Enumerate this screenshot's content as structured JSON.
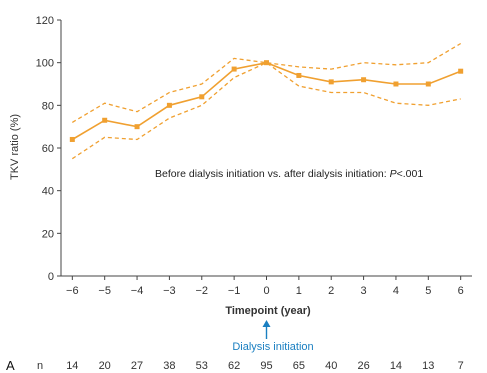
{
  "chart_data": {
    "type": "line",
    "panel_label": "A",
    "xlabel": "Timepoint (year)",
    "ylabel": "TKV ratio (%)",
    "ylim": [
      0,
      120
    ],
    "yticks": [
      0,
      20,
      40,
      60,
      80,
      100,
      120
    ],
    "categories": [
      "−6",
      "−5",
      "−4",
      "−3",
      "−2",
      "−1",
      "0",
      "1",
      "2",
      "3",
      "4",
      "5",
      "6"
    ],
    "x": [
      -6,
      -5,
      -4,
      -3,
      -2,
      -1,
      0,
      1,
      2,
      3,
      4,
      5,
      6
    ],
    "series": [
      {
        "role": "mean",
        "style": "solid",
        "marker": "square",
        "color": "#f0a030",
        "values": [
          64,
          73,
          70,
          80,
          84,
          97,
          100,
          94,
          91,
          92,
          90,
          90,
          96
        ]
      },
      {
        "role": "upper",
        "style": "dashed",
        "color": "#f0a030",
        "values": [
          72,
          81,
          77,
          86,
          90,
          102,
          100,
          98,
          97,
          100,
          99,
          100,
          109
        ]
      },
      {
        "role": "lower",
        "style": "dashed",
        "color": "#f0a030",
        "values": [
          55,
          65,
          64,
          74,
          80,
          93,
          100,
          89,
          86,
          86,
          81,
          80,
          83
        ]
      }
    ],
    "annotation": {
      "prefix": "Before dialysis initiation vs. after dialysis initiation: ",
      "stat": "P",
      "suffix": "<.001"
    },
    "marker_label": "Dialysis initiation",
    "marker_x": 0,
    "marker_color": "#1a7fc1",
    "n_label": "n",
    "n_values": [
      "14",
      "20",
      "27",
      "38",
      "53",
      "62",
      "95",
      "65",
      "40",
      "26",
      "14",
      "13",
      "7"
    ],
    "grid": false,
    "legend": "none"
  }
}
